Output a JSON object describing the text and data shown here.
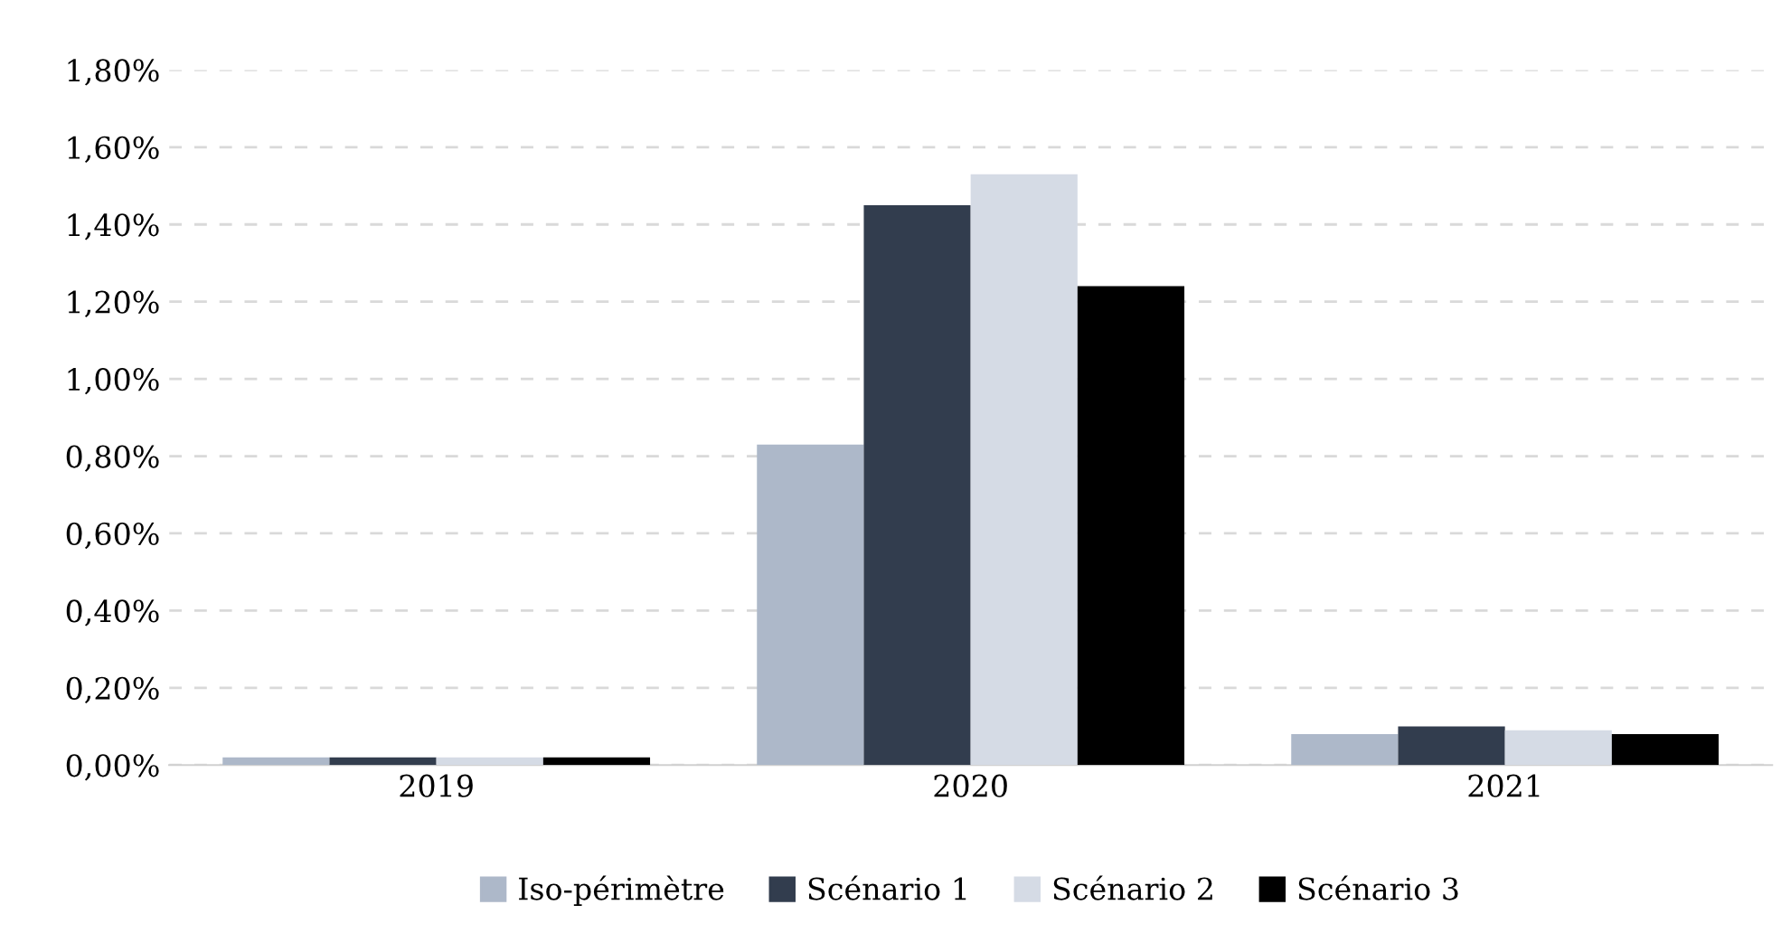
{
  "chart_data": {
    "type": "bar",
    "categories": [
      "2019",
      "2020",
      "2021"
    ],
    "series": [
      {
        "name": "Iso-périmètre",
        "color": "#adb8c9",
        "values": [
          0.02,
          0.83,
          0.08
        ]
      },
      {
        "name": "Scénario 1",
        "color": "#323d4e",
        "values": [
          0.02,
          1.45,
          0.1
        ]
      },
      {
        "name": "Scénario 2",
        "color": "#d5dbe5",
        "values": [
          0.02,
          1.53,
          0.09
        ]
      },
      {
        "name": "Scénario 3",
        "color": "#000000",
        "values": [
          0.02,
          1.24,
          0.08
        ]
      }
    ],
    "ylim": [
      0,
      1.8
    ],
    "yticks": [
      {
        "value": 0,
        "label": "0,00%"
      },
      {
        "value": 0.2,
        "label": "0,20%"
      },
      {
        "value": 0.4,
        "label": "0,40%"
      },
      {
        "value": 0.6,
        "label": "0,60%"
      },
      {
        "value": 0.8,
        "label": "0,80%"
      },
      {
        "value": 1.0,
        "label": "1,00%"
      },
      {
        "value": 1.2,
        "label": "1,20%"
      },
      {
        "value": 1.4,
        "label": "1,40%"
      },
      {
        "value": 1.6,
        "label": "1,60%"
      },
      {
        "value": 1.8,
        "label": "1,80%"
      }
    ],
    "grid": "y",
    "legend": "bottom"
  }
}
